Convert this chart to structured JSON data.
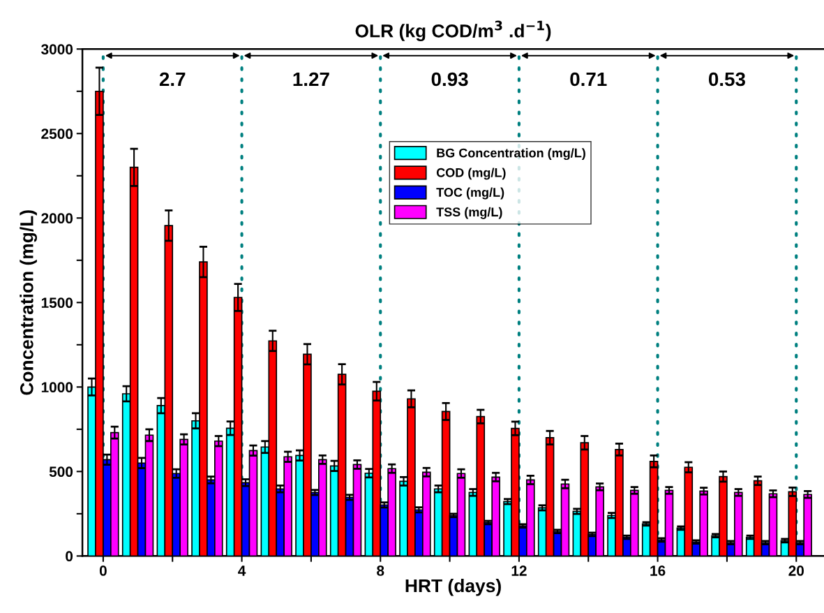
{
  "chart_data": {
    "type": "bar",
    "xlabel": "HRT (days)",
    "ylabel": "Concentration (mg/L)",
    "title": "OLR (kg COD/m$^{3}$ .d$^{−1}$)",
    "x": [
      0,
      1,
      2,
      3,
      4,
      5,
      6,
      7,
      8,
      9,
      10,
      11,
      12,
      13,
      14,
      15,
      16,
      17,
      18,
      19,
      20
    ],
    "series": [
      {
        "name": "BG Concentration (mg/L)",
        "color": "#00ffff",
        "values": [
          1000,
          960,
          890,
          800,
          756,
          645,
          595,
          533,
          490,
          442,
          397,
          376,
          322,
          285,
          264,
          240,
          190,
          165,
          120,
          111,
          91
        ],
        "errors": [
          50,
          45,
          45,
          45,
          40,
          35,
          30,
          30,
          25,
          25,
          20,
          20,
          15,
          15,
          15,
          15,
          10,
          10,
          10,
          10,
          10
        ]
      },
      {
        "name": "COD (mg/L)",
        "color": "#ff0000",
        "values": [
          2750,
          2300,
          1955,
          1740,
          1530,
          1273,
          1194,
          1075,
          975,
          930,
          855,
          825,
          755,
          700,
          670,
          630,
          560,
          525,
          470,
          445,
          380
        ],
        "errors": [
          140,
          110,
          90,
          90,
          80,
          60,
          60,
          60,
          55,
          50,
          50,
          40,
          40,
          40,
          40,
          35,
          35,
          30,
          30,
          25,
          25
        ]
      },
      {
        "name": "TOC (mg/L)",
        "color": "#0000ff",
        "values": [
          570,
          550,
          488,
          450,
          434,
          397,
          376,
          347,
          302,
          273,
          240,
          198,
          178,
          145,
          128,
          111,
          95,
          83,
          79,
          79,
          79
        ],
        "errors": [
          30,
          30,
          25,
          20,
          20,
          20,
          15,
          15,
          15,
          15,
          10,
          10,
          10,
          10,
          10,
          10,
          10,
          10,
          10,
          10,
          10
        ]
      },
      {
        "name": "TSS (mg/L)",
        "color": "#ff00ff",
        "values": [
          730,
          715,
          690,
          680,
          624,
          587,
          570,
          541,
          517,
          496,
          488,
          467,
          450,
          426,
          409,
          388,
          388,
          384,
          376,
          368,
          364
        ],
        "errors": [
          35,
          35,
          30,
          30,
          30,
          30,
          25,
          25,
          25,
          25,
          25,
          25,
          25,
          25,
          20,
          20,
          20,
          20,
          20,
          20,
          20
        ]
      }
    ],
    "xlim": [
      -0.6,
      20.8
    ],
    "ylim": [
      0,
      3000
    ],
    "xticks": [
      0,
      {
        "value": 2,
        "label": null
      },
      4,
      {
        "value": 6,
        "label": null
      },
      8,
      {
        "value": 10,
        "label": null
      },
      12,
      {
        "value": 14,
        "label": null
      },
      16,
      {
        "value": 18,
        "label": null
      },
      20
    ],
    "yticks": [
      0,
      {
        "value": 250,
        "label": null
      },
      500,
      {
        "value": 750,
        "label": null
      },
      1000,
      {
        "value": 1250,
        "label": null
      },
      1500,
      {
        "value": 1750,
        "label": null
      },
      2000,
      {
        "value": 2250,
        "label": null
      },
      2500,
      {
        "value": 2750,
        "label": null
      },
      3000
    ],
    "ref_lines": [
      {
        "axis": "x",
        "value": 0,
        "color": "#008080",
        "line_style": "dotted"
      },
      {
        "axis": "x",
        "value": 4,
        "color": "#008080",
        "line_style": "dotted"
      },
      {
        "axis": "x",
        "value": 8,
        "color": "#008080",
        "line_style": "dotted"
      },
      {
        "axis": "x",
        "value": 12,
        "color": "#008080",
        "line_style": "dotted"
      },
      {
        "axis": "x",
        "value": 16,
        "color": "#008080",
        "line_style": "dotted"
      },
      {
        "axis": "x",
        "value": 20,
        "color": "#008080",
        "line_style": "dotted"
      }
    ],
    "annotations": [
      "2.7",
      "1.27",
      "0.93",
      "0.71",
      "0.53"
    ],
    "legend": "top",
    "grid": false
  }
}
